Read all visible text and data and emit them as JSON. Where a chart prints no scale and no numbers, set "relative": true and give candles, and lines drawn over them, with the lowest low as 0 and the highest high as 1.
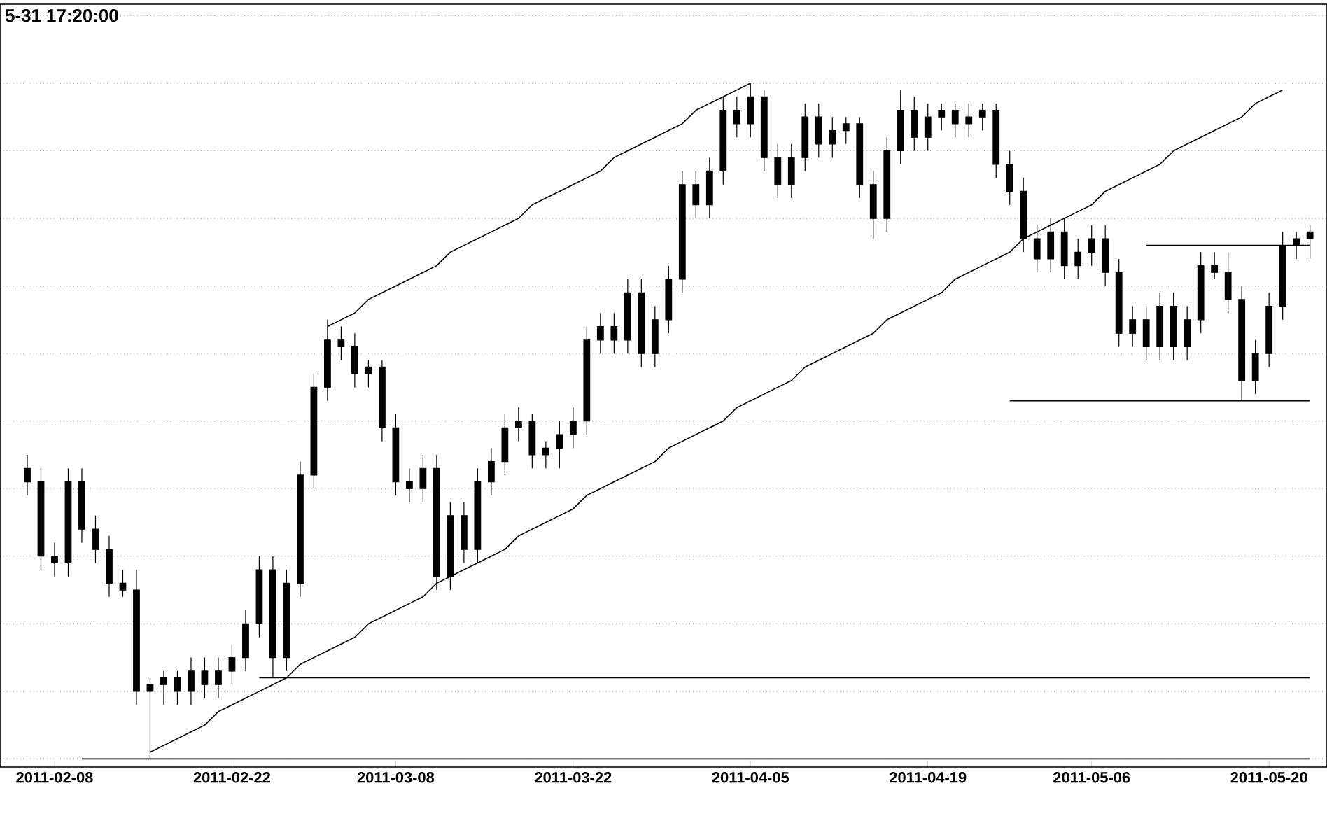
{
  "chart_data": {
    "type": "candlestick",
    "title": "5-31 17:20:00",
    "relative": true,
    "color": "#000000",
    "grid": "y",
    "categories": [
      null,
      null,
      "2011-02-08",
      null,
      null,
      null,
      null,
      null,
      null,
      null,
      null,
      null,
      null,
      null,
      null,
      "2011-02-22",
      null,
      null,
      null,
      null,
      null,
      null,
      null,
      null,
      null,
      null,
      null,
      "2011-03-08",
      null,
      null,
      null,
      null,
      null,
      null,
      null,
      null,
      null,
      null,
      null,
      null,
      "2011-03-22",
      null,
      null,
      null,
      null,
      null,
      null,
      null,
      null,
      null,
      null,
      null,
      null,
      "2011-04-05",
      null,
      null,
      null,
      null,
      null,
      null,
      null,
      null,
      null,
      null,
      null,
      null,
      "2011-04-19",
      null,
      null,
      null,
      null,
      null,
      null,
      null,
      null,
      null,
      null,
      null,
      "2011-05-06",
      null,
      null,
      null,
      null,
      null,
      null,
      null,
      null,
      null,
      null,
      null,
      null,
      "2011-05-20",
      null,
      null,
      null
    ],
    "ohlc": [
      [
        0.43,
        0.45,
        0.39,
        0.41
      ],
      [
        0.41,
        0.43,
        0.28,
        0.3
      ],
      [
        0.3,
        0.32,
        0.27,
        0.29
      ],
      [
        0.29,
        0.43,
        0.27,
        0.41
      ],
      [
        0.41,
        0.43,
        0.32,
        0.34
      ],
      [
        0.34,
        0.36,
        0.29,
        0.31
      ],
      [
        0.31,
        0.33,
        0.24,
        0.26
      ],
      [
        0.26,
        0.28,
        0.24,
        0.25
      ],
      [
        0.25,
        0.28,
        0.08,
        0.1
      ],
      [
        0.1,
        0.12,
        0,
        0.11
      ],
      [
        0.11,
        0.13,
        0.08,
        0.12
      ],
      [
        0.12,
        0.13,
        0.08,
        0.1
      ],
      [
        0.1,
        0.15,
        0.08,
        0.13
      ],
      [
        0.13,
        0.15,
        0.09,
        0.11
      ],
      [
        0.11,
        0.15,
        0.09,
        0.13
      ],
      [
        0.13,
        0.17,
        0.11,
        0.15
      ],
      [
        0.15,
        0.22,
        0.13,
        0.2
      ],
      [
        0.2,
        0.3,
        0.18,
        0.28
      ],
      [
        0.28,
        0.3,
        0.12,
        0.15
      ],
      [
        0.15,
        0.28,
        0.13,
        0.26
      ],
      [
        0.26,
        0.44,
        0.24,
        0.42
      ],
      [
        0.42,
        0.57,
        0.4,
        0.55
      ],
      [
        0.55,
        0.65,
        0.53,
        0.62
      ],
      [
        0.62,
        0.64,
        0.59,
        0.61
      ],
      [
        0.61,
        0.63,
        0.55,
        0.57
      ],
      [
        0.57,
        0.59,
        0.55,
        0.58
      ],
      [
        0.58,
        0.59,
        0.47,
        0.49
      ],
      [
        0.49,
        0.51,
        0.39,
        0.41
      ],
      [
        0.41,
        0.43,
        0.38,
        0.4
      ],
      [
        0.4,
        0.45,
        0.38,
        0.43
      ],
      [
        0.43,
        0.45,
        0.25,
        0.27
      ],
      [
        0.27,
        0.38,
        0.25,
        0.36
      ],
      [
        0.36,
        0.38,
        0.29,
        0.31
      ],
      [
        0.31,
        0.43,
        0.29,
        0.41
      ],
      [
        0.41,
        0.46,
        0.39,
        0.44
      ],
      [
        0.44,
        0.51,
        0.42,
        0.49
      ],
      [
        0.49,
        0.52,
        0.47,
        0.5
      ],
      [
        0.5,
        0.51,
        0.43,
        0.45
      ],
      [
        0.45,
        0.47,
        0.43,
        0.46
      ],
      [
        0.46,
        0.5,
        0.43,
        0.48
      ],
      [
        0.48,
        0.52,
        0.46,
        0.5
      ],
      [
        0.5,
        0.64,
        0.48,
        0.62
      ],
      [
        0.62,
        0.66,
        0.6,
        0.64
      ],
      [
        0.64,
        0.66,
        0.6,
        0.62
      ],
      [
        0.62,
        0.71,
        0.6,
        0.69
      ],
      [
        0.69,
        0.71,
        0.58,
        0.6
      ],
      [
        0.6,
        0.67,
        0.58,
        0.65
      ],
      [
        0.65,
        0.73,
        0.63,
        0.71
      ],
      [
        0.71,
        0.87,
        0.69,
        0.85
      ],
      [
        0.85,
        0.87,
        0.8,
        0.82
      ],
      [
        0.82,
        0.89,
        0.8,
        0.87
      ],
      [
        0.87,
        0.98,
        0.85,
        0.96
      ],
      [
        0.96,
        0.98,
        0.92,
        0.94
      ],
      [
        0.94,
        1,
        0.92,
        0.98
      ],
      [
        0.98,
        0.99,
        0.87,
        0.89
      ],
      [
        0.89,
        0.91,
        0.83,
        0.85
      ],
      [
        0.85,
        0.91,
        0.83,
        0.89
      ],
      [
        0.89,
        0.97,
        0.87,
        0.95
      ],
      [
        0.95,
        0.97,
        0.89,
        0.91
      ],
      [
        0.91,
        0.95,
        0.89,
        0.93
      ],
      [
        0.93,
        0.95,
        0.91,
        0.94
      ],
      [
        0.94,
        0.95,
        0.83,
        0.85
      ],
      [
        0.85,
        0.87,
        0.77,
        0.8
      ],
      [
        0.8,
        0.92,
        0.78,
        0.9
      ],
      [
        0.9,
        0.99,
        0.88,
        0.96
      ],
      [
        0.96,
        0.98,
        0.9,
        0.92
      ],
      [
        0.92,
        0.97,
        0.9,
        0.95
      ],
      [
        0.95,
        0.97,
        0.93,
        0.96
      ],
      [
        0.96,
        0.97,
        0.92,
        0.94
      ],
      [
        0.94,
        0.97,
        0.92,
        0.95
      ],
      [
        0.95,
        0.97,
        0.93,
        0.96
      ],
      [
        0.96,
        0.97,
        0.86,
        0.88
      ],
      [
        0.88,
        0.9,
        0.82,
        0.84
      ],
      [
        0.84,
        0.86,
        0.75,
        0.77
      ],
      [
        0.77,
        0.79,
        0.72,
        0.74
      ],
      [
        0.74,
        0.8,
        0.72,
        0.78
      ],
      [
        0.78,
        0.8,
        0.71,
        0.73
      ],
      [
        0.73,
        0.77,
        0.71,
        0.75
      ],
      [
        0.75,
        0.79,
        0.73,
        0.77
      ],
      [
        0.77,
        0.79,
        0.7,
        0.72
      ],
      [
        0.72,
        0.74,
        0.61,
        0.63
      ],
      [
        0.63,
        0.67,
        0.61,
        0.65
      ],
      [
        0.65,
        0.67,
        0.59,
        0.61
      ],
      [
        0.61,
        0.69,
        0.59,
        0.67
      ],
      [
        0.67,
        0.69,
        0.59,
        0.61
      ],
      [
        0.61,
        0.67,
        0.59,
        0.65
      ],
      [
        0.65,
        0.75,
        0.63,
        0.73
      ],
      [
        0.73,
        0.75,
        0.71,
        0.72
      ],
      [
        0.72,
        0.75,
        0.66,
        0.68
      ],
      [
        0.68,
        0.7,
        0.53,
        0.56
      ],
      [
        0.56,
        0.62,
        0.54,
        0.6
      ],
      [
        0.6,
        0.69,
        0.58,
        0.67
      ],
      [
        0.67,
        0.78,
        0.65,
        0.76
      ],
      [
        0.76,
        0.78,
        0.74,
        0.77
      ],
      [
        0.77,
        0.79,
        0.74,
        0.78
      ]
    ],
    "series": [
      {
        "type": "line",
        "color": "#000000",
        "values": [
          null,
          null,
          null,
          null,
          null,
          null,
          null,
          null,
          null,
          null,
          null,
          null,
          null,
          null,
          null,
          null,
          null,
          null,
          null,
          null,
          null,
          null,
          0.64,
          0.65,
          0.66,
          0.68,
          0.69,
          0.7,
          0.71,
          0.72,
          0.73,
          0.75,
          0.76,
          0.77,
          0.78,
          0.79,
          0.8,
          0.82,
          0.83,
          0.84,
          0.85,
          0.86,
          0.87,
          0.89,
          0.9,
          0.91,
          0.92,
          0.93,
          0.94,
          0.96,
          0.97,
          0.98,
          0.99,
          1.0,
          null,
          null,
          null,
          null,
          null,
          null,
          null,
          null,
          null,
          null,
          null,
          null,
          null,
          null,
          null,
          null,
          null,
          null,
          null,
          null,
          null,
          null,
          null,
          null,
          null,
          null,
          null,
          null,
          null,
          null,
          null,
          null,
          null,
          null,
          null,
          null,
          null,
          null,
          null,
          null,
          null
        ]
      },
      {
        "type": "line",
        "color": "#000000",
        "values": [
          null,
          null,
          null,
          null,
          null,
          null,
          null,
          null,
          null,
          0.01,
          0.02,
          0.03,
          0.04,
          0.05,
          0.07,
          0.08,
          0.09,
          0.1,
          0.11,
          0.12,
          0.14,
          0.15,
          0.16,
          0.17,
          0.18,
          0.2,
          0.21,
          0.22,
          0.23,
          0.24,
          0.26,
          0.27,
          0.28,
          0.29,
          0.3,
          0.31,
          0.33,
          0.34,
          0.35,
          0.36,
          0.37,
          0.39,
          0.4,
          0.41,
          0.42,
          0.43,
          0.44,
          0.46,
          0.47,
          0.48,
          0.49,
          0.5,
          0.52,
          0.53,
          0.54,
          0.55,
          0.56,
          0.58,
          0.59,
          0.6,
          0.61,
          0.62,
          0.63,
          0.65,
          0.66,
          0.67,
          0.68,
          0.69,
          0.71,
          0.72,
          0.73,
          0.74,
          0.75,
          0.77,
          0.78,
          0.79,
          0.8,
          0.81,
          0.82,
          0.84,
          0.85,
          0.86,
          0.87,
          0.88,
          0.9,
          0.91,
          0.92,
          0.93,
          0.94,
          0.95,
          0.97,
          0.98,
          0.99,
          null,
          null
        ]
      },
      {
        "type": "line",
        "color": "#000000",
        "values": [
          null,
          null,
          null,
          null,
          null,
          null,
          null,
          null,
          null,
          null,
          null,
          null,
          null,
          null,
          null,
          null,
          null,
          0.12,
          0.12,
          0.12,
          0.12,
          0.12,
          0.12,
          0.12,
          0.12,
          0.12,
          0.12,
          0.12,
          0.12,
          0.12,
          0.12,
          0.12,
          0.12,
          0.12,
          0.12,
          0.12,
          0.12,
          0.12,
          0.12,
          0.12,
          0.12,
          0.12,
          0.12,
          0.12,
          0.12,
          0.12,
          0.12,
          0.12,
          0.12,
          0.12,
          0.12,
          0.12,
          0.12,
          0.12,
          0.12,
          0.12,
          0.12,
          0.12,
          0.12,
          0.12,
          0.12,
          0.12,
          0.12,
          0.12,
          0.12,
          0.12,
          0.12,
          0.12,
          0.12,
          0.12,
          0.12,
          0.12,
          0.12,
          0.12,
          0.12,
          0.12,
          0.12,
          0.12,
          0.12,
          0.12,
          0.12,
          0.12,
          0.12,
          0.12,
          0.12,
          0.12,
          0.12,
          0.12,
          0.12,
          0.12,
          0.12,
          0.12,
          0.12,
          0.12,
          0.12
        ]
      },
      {
        "type": "line",
        "color": "#000000",
        "values": [
          null,
          null,
          null,
          null,
          null,
          null,
          null,
          null,
          null,
          null,
          null,
          null,
          null,
          null,
          null,
          null,
          null,
          null,
          null,
          null,
          null,
          null,
          null,
          null,
          null,
          null,
          null,
          null,
          null,
          null,
          null,
          null,
          null,
          null,
          null,
          null,
          null,
          null,
          null,
          null,
          null,
          null,
          null,
          null,
          null,
          null,
          null,
          null,
          null,
          null,
          null,
          null,
          null,
          null,
          null,
          null,
          null,
          null,
          null,
          null,
          null,
          null,
          null,
          null,
          null,
          null,
          null,
          null,
          null,
          null,
          null,
          null,
          0.53,
          0.53,
          0.53,
          0.53,
          0.53,
          0.53,
          0.53,
          0.53,
          0.53,
          0.53,
          0.53,
          0.53,
          0.53,
          0.53,
          0.53,
          0.53,
          0.53,
          0.53,
          0.53,
          0.53,
          0.53,
          0.53,
          0.53
        ]
      },
      {
        "type": "line",
        "color": "#000000",
        "values": [
          null,
          null,
          null,
          null,
          null,
          null,
          null,
          null,
          null,
          null,
          null,
          null,
          null,
          null,
          null,
          null,
          null,
          null,
          null,
          null,
          null,
          null,
          null,
          null,
          null,
          null,
          null,
          null,
          null,
          null,
          null,
          null,
          null,
          null,
          null,
          null,
          null,
          null,
          null,
          null,
          null,
          null,
          null,
          null,
          null,
          null,
          null,
          null,
          null,
          null,
          null,
          null,
          null,
          null,
          null,
          null,
          null,
          null,
          null,
          null,
          null,
          null,
          null,
          null,
          null,
          null,
          null,
          null,
          null,
          null,
          null,
          null,
          null,
          null,
          null,
          null,
          null,
          null,
          null,
          null,
          null,
          null,
          0.76,
          0.76,
          0.76,
          0.76,
          0.76,
          0.76,
          0.76,
          0.76,
          0.76,
          0.76,
          0.76,
          0.76,
          0.76
        ]
      },
      {
        "type": "line",
        "color": "#000000",
        "values": [
          null,
          null,
          null,
          null,
          0,
          0,
          0,
          0,
          0,
          0,
          0,
          0,
          0,
          0,
          0,
          0,
          0,
          0,
          0,
          0,
          0,
          0,
          0,
          0,
          0,
          0,
          0,
          0,
          0,
          0,
          0,
          0,
          0,
          0,
          0,
          0,
          0,
          0,
          0,
          0,
          0,
          0,
          0,
          0,
          0,
          0,
          0,
          0,
          0,
          0,
          0,
          0,
          0,
          0,
          0,
          0,
          0,
          0,
          0,
          0,
          0,
          0,
          0,
          0,
          0,
          0,
          0,
          0,
          0,
          0,
          0,
          0,
          0,
          0,
          0,
          0,
          0,
          0,
          0,
          0,
          0,
          0,
          0,
          0,
          0,
          0,
          0,
          0,
          0,
          0,
          0,
          0,
          0,
          0,
          0
        ]
      }
    ]
  }
}
